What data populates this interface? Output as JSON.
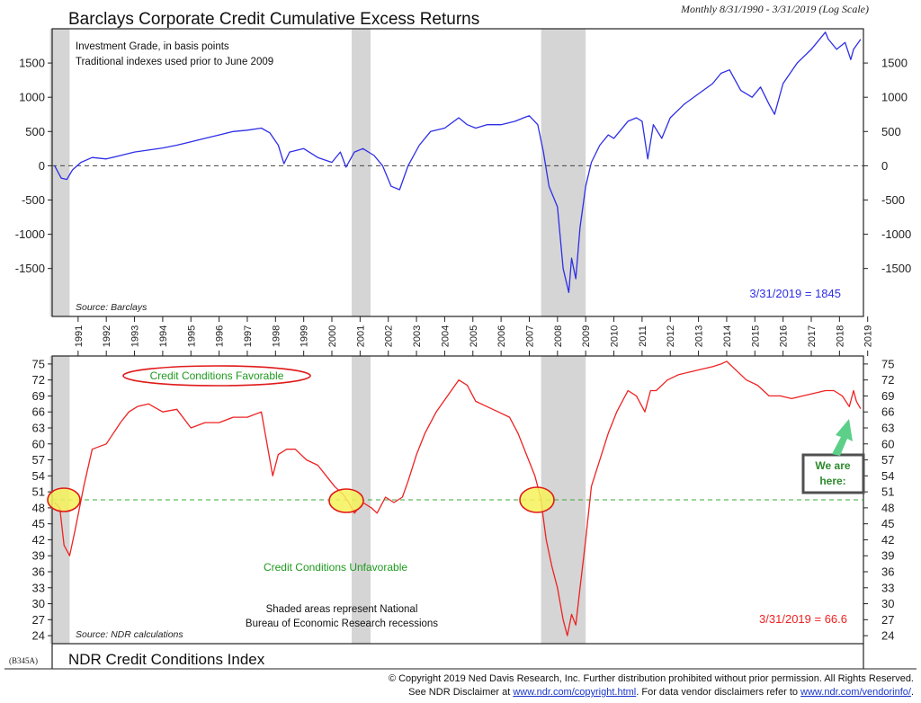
{
  "header": {
    "title": "Barclays Corporate Credit Cumulative Excess Returns",
    "subtitle": "Monthly 8/31/1990 - 3/31/2019 (Log Scale)"
  },
  "chart_data": [
    {
      "type": "line",
      "title": "Barclays Corporate Credit Cumulative Excess Returns",
      "notes": [
        "Investment Grade, in basis points",
        "Traditional indexes used prior to June 2009"
      ],
      "source": "Source: Barclays",
      "end_label": "3/31/2019 = 1845",
      "yticks": [
        1500,
        1000,
        500,
        0,
        -500,
        -1000,
        -1500
      ],
      "ylim": [
        -2200,
        2000
      ],
      "reference_line": 0,
      "line_color": "#2e2ee6",
      "series": [
        {
          "x": [
            1990.67,
            1990.9,
            1991.1,
            1991.3,
            1991.6,
            1992.0,
            1992.5,
            1993.0,
            1993.5,
            1994.0,
            1994.5,
            1995.0,
            1995.5,
            1996.0,
            1996.5,
            1997.0,
            1997.5,
            1998.0,
            1998.3,
            1998.6,
            1998.8,
            1999.0,
            1999.5,
            2000.0,
            2000.5,
            2000.8,
            2001.0,
            2001.3,
            2001.6,
            2002.0,
            2002.3,
            2002.6,
            2002.9,
            2003.2,
            2003.6,
            2004.0,
            2004.5,
            2005.0,
            2005.3,
            2005.6,
            2006.0,
            2006.5,
            2007.0,
            2007.3,
            2007.5,
            2007.8,
            2008.0,
            2008.2,
            2008.5,
            2008.7,
            2008.9,
            2009.0,
            2009.15,
            2009.3,
            2009.5,
            2009.7,
            2010.0,
            2010.3,
            2010.5,
            2011.0,
            2011.3,
            2011.5,
            2011.7,
            2011.9,
            2012.2,
            2012.5,
            2013.0,
            2013.5,
            2014.0,
            2014.3,
            2014.6,
            2015.0,
            2015.4,
            2015.7,
            2016.0,
            2016.2,
            2016.5,
            2017.0,
            2017.5,
            2018.0,
            2018.1,
            2018.4,
            2018.7,
            2018.9,
            2019.0,
            2019.25
          ],
          "values": [
            0,
            -180,
            -200,
            -60,
            50,
            120,
            100,
            150,
            200,
            230,
            260,
            300,
            350,
            400,
            450,
            500,
            520,
            550,
            480,
            300,
            30,
            200,
            250,
            120,
            50,
            200,
            -20,
            200,
            250,
            150,
            0,
            -300,
            -350,
            0,
            300,
            500,
            550,
            700,
            600,
            550,
            600,
            600,
            650,
            700,
            730,
            600,
            200,
            -300,
            -600,
            -1500,
            -1850,
            -1350,
            -1650,
            -900,
            -300,
            50,
            300,
            450,
            400,
            650,
            700,
            650,
            100,
            600,
            400,
            700,
            900,
            1050,
            1200,
            1350,
            1400,
            1100,
            1000,
            1150,
            900,
            750,
            1200,
            1500,
            1700,
            1950,
            1850,
            1700,
            1800,
            1550,
            1700,
            1845
          ]
        }
      ]
    },
    {
      "type": "line",
      "title": "NDR Credit Conditions Index",
      "source": "Source: NDR calculations",
      "end_label": "3/31/2019 = 66.6",
      "favorable_label": "Credit Conditions Favorable",
      "unfavorable_label": "Credit Conditions Unfavorable",
      "note": [
        "Shaded areas represent National",
        "Bureau of Economic Research recessions"
      ],
      "callout": [
        "We are",
        "here:"
      ],
      "yticks": [
        75,
        72,
        69,
        66,
        63,
        60,
        57,
        54,
        51,
        48,
        45,
        42,
        39,
        36,
        33,
        30,
        27,
        24
      ],
      "ylim": [
        22.5,
        76.5
      ],
      "reference_line": 49.5,
      "line_color": "#ee2222",
      "series": [
        {
          "x": [
            1990.67,
            1990.85,
            1991.0,
            1991.2,
            1991.4,
            1991.7,
            1992.0,
            1992.5,
            1993.0,
            1993.3,
            1993.6,
            1994.0,
            1994.5,
            1995.0,
            1995.5,
            1996.0,
            1996.5,
            1997.0,
            1997.5,
            1998.0,
            1998.2,
            1998.4,
            1998.6,
            1998.9,
            1999.2,
            1999.6,
            2000.0,
            2000.3,
            2000.6,
            2000.9,
            2001.1,
            2001.3,
            2001.6,
            2001.9,
            2002.1,
            2002.4,
            2002.7,
            2003.0,
            2003.2,
            2003.5,
            2003.8,
            2004.2,
            2004.6,
            2005.0,
            2005.3,
            2005.6,
            2006.0,
            2006.4,
            2006.8,
            2007.1,
            2007.4,
            2007.7,
            2007.9,
            2008.1,
            2008.3,
            2008.5,
            2008.7,
            2008.85,
            2009.0,
            2009.15,
            2009.3,
            2009.5,
            2009.7,
            2010.0,
            2010.3,
            2010.6,
            2011.0,
            2011.3,
            2011.6,
            2011.8,
            2012.0,
            2012.4,
            2012.8,
            2013.2,
            2013.6,
            2014.0,
            2014.3,
            2014.5,
            2014.8,
            2015.2,
            2015.6,
            2016.0,
            2016.4,
            2016.8,
            2017.2,
            2017.6,
            2018.0,
            2018.3,
            2018.6,
            2018.85,
            2019.0,
            2019.1,
            2019.25
          ],
          "values": [
            49,
            48,
            41,
            39,
            44,
            52,
            59,
            60,
            64,
            66,
            67,
            67.5,
            66,
            66.5,
            63,
            64,
            64,
            65,
            65,
            66,
            60,
            54,
            58,
            59,
            59,
            57,
            56,
            54,
            52,
            50.5,
            49,
            47,
            49,
            48,
            47,
            50,
            49,
            50,
            53,
            58,
            62,
            66,
            69,
            72,
            71,
            68,
            67,
            66,
            65,
            62,
            58,
            54,
            50,
            42,
            37,
            33,
            27,
            24,
            28,
            26,
            33,
            42,
            52,
            57,
            62,
            66,
            70,
            69,
            66,
            70,
            70,
            72,
            73,
            73.5,
            74,
            74.5,
            75,
            75.5,
            74,
            72,
            71,
            69,
            69,
            68.5,
            69,
            69.5,
            70,
            70,
            69,
            67,
            70,
            68,
            66.6
          ]
        }
      ]
    }
  ],
  "x_axis": {
    "years": [
      "1991",
      "1992",
      "1993",
      "1994",
      "1995",
      "1996",
      "1997",
      "1998",
      "1999",
      "2000",
      "2001",
      "2002",
      "2003",
      "2004",
      "2005",
      "2006",
      "2007",
      "2008",
      "2009",
      "2010",
      "2011",
      "2012",
      "2013",
      "2014",
      "2015",
      "2016",
      "2017",
      "2018",
      "2019"
    ]
  },
  "recessions": [
    [
      1990.5,
      1991.2
    ],
    [
      2001.2,
      2001.87
    ],
    [
      2007.92,
      2009.5
    ]
  ],
  "bottom": {
    "code": "(B345A)",
    "title": "NDR Credit Conditions Index"
  },
  "footer": {
    "line1": "© Copyright 2019 Ned Davis Research, Inc.  Further distribution prohibited without prior permission.  All Rights Reserved.",
    "line2_a": "See NDR Disclaimer at ",
    "link1": "www.ndr.com/copyright.html",
    "line2_b": ". For data vendor disclaimers refer to ",
    "link2": "www.ndr.com/vendorinfo/",
    "line2_c": "."
  },
  "colors": {
    "recession_shade": "#d5d5d5",
    "top_line": "#2e2ee6",
    "bottom_line": "#ee2222",
    "favorable_text": "#1e9a1e",
    "oval": "#e01a1a",
    "yellow_oval": "#f7f25b",
    "arrow": "#5ccf88",
    "ref_line_top": "#444444",
    "ref_line_bottom": "#3aa93a"
  }
}
